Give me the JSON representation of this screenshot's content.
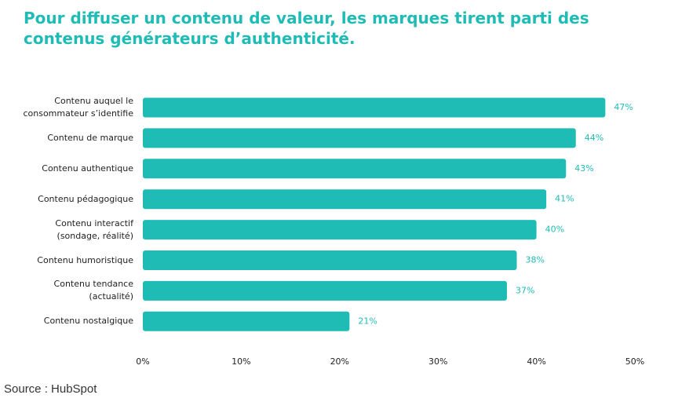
{
  "chart_data": {
    "type": "bar",
    "orientation": "horizontal",
    "title": "Pour diffuser un contenu de valeur, les marques tirent parti des contenus générateurs d’authenticité.",
    "categories": [
      "Contenu auquel le\nconsommateur s’identifie",
      "Contenu de marque",
      "Contenu authentique",
      "Contenu pédagogique",
      "Contenu interactif\n(sondage, réalité)",
      "Contenu humoristique",
      "Contenu tendance\n(actualité)",
      "Contenu nostalgique"
    ],
    "values": [
      47,
      44,
      43,
      41,
      40,
      38,
      37,
      21
    ],
    "value_labels": [
      "47%",
      "44%",
      "43%",
      "41%",
      "40%",
      "38%",
      "37%",
      "21%"
    ],
    "color": "#1fbcb6",
    "xlim": [
      0,
      50
    ],
    "xticks": [
      {
        "value": 0,
        "label": "0%"
      },
      {
        "value": 10,
        "label": "10%"
      },
      {
        "value": 20,
        "label": "20%"
      },
      {
        "value": 30,
        "label": "30%"
      },
      {
        "value": 40,
        "label": "40%"
      },
      {
        "value": 50,
        "label": "50%"
      }
    ],
    "grid": false
  },
  "source": "Source : HubSpot"
}
